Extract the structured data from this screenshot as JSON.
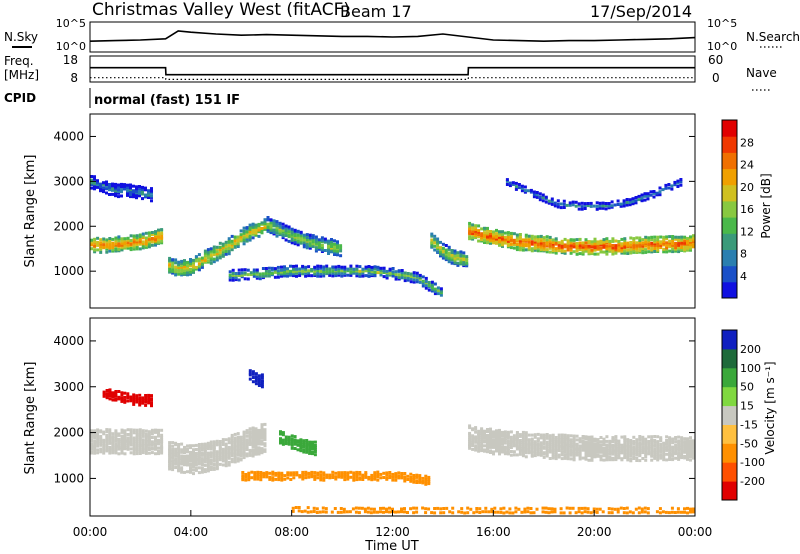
{
  "header": {
    "title": "Christmas Valley West (fitACF)",
    "beam": "Beam 17",
    "date": "17/Sep/2014"
  },
  "top_panels": {
    "nsky_label": "N.Sky",
    "nsearch_label": "N.Search",
    "noise_ticks": [
      "10^5",
      "10^0"
    ],
    "freq_label": "Freq.",
    "freq_unit": "[MHz]",
    "freq_ticks": [
      "18",
      "8"
    ],
    "nave_label": "Nave",
    "nave_ticks": [
      "60",
      "0"
    ],
    "cpid_label": "CPID",
    "cpid_value": "normal (fast) 151 IF"
  },
  "chart_data": [
    {
      "type": "line",
      "name": "noise",
      "x": [
        0,
        1,
        2,
        3,
        3.5,
        4,
        5,
        6,
        7,
        8,
        9,
        10,
        11,
        12,
        13,
        14,
        15,
        16,
        17,
        18,
        19,
        20,
        21,
        22,
        23,
        24
      ],
      "series": [
        {
          "name": "N.Sky",
          "values": [
            1.8,
            1.9,
            2.0,
            2.2,
            3.5,
            3.3,
            3.0,
            2.8,
            2.9,
            2.8,
            2.7,
            2.6,
            2.6,
            2.5,
            2.6,
            3.0,
            2.5,
            2.0,
            1.9,
            1.8,
            1.9,
            1.9,
            2.0,
            2.1,
            2.2,
            2.4
          ]
        }
      ],
      "yscale": "log",
      "ylim": [
        0,
        5
      ],
      "xlim": [
        0,
        24
      ]
    },
    {
      "type": "line",
      "name": "frequency",
      "x": [
        0,
        3,
        3.01,
        15,
        15.01,
        24
      ],
      "series": [
        {
          "name": "Freq.",
          "values": [
            13.5,
            13.5,
            10.8,
            10.8,
            13.5,
            13.5
          ]
        },
        {
          "name": "Nave",
          "values": [
            10,
            10,
            6,
            6,
            10,
            10
          ]
        }
      ],
      "ylim": [
        8,
        18
      ],
      "y2lim": [
        0,
        60
      ],
      "xlim": [
        0,
        24
      ]
    },
    {
      "type": "heatmap",
      "name": "power",
      "xlim": [
        0,
        24
      ],
      "ylim": [
        180,
        4500
      ],
      "ylabel": "Slant Range [km]",
      "yticks": [
        "1000",
        "2000",
        "3000",
        "4000"
      ],
      "colorbar_label": "Power [dB]",
      "colorbar_ticks": [
        "4",
        "8",
        "12",
        "16",
        "20",
        "24",
        "28"
      ],
      "colorbar_range": [
        0,
        30
      ],
      "colorbar_colors": [
        "#1010e0",
        "#1a50c8",
        "#2a7fb0",
        "#3a9a7a",
        "#4ab84a",
        "#88c840",
        "#d0c020",
        "#f0a000",
        "#f07000",
        "#f03800",
        "#e00000"
      ],
      "bands": [
        {
          "name": "main-sea-scatter-early",
          "x": [
            0,
            0.5,
            1,
            1.5,
            2,
            2.5,
            2.9
          ],
          "range": [
            1600,
            1580,
            1600,
            1620,
            1650,
            1720,
            1800
          ],
          "width": 300,
          "db": 24
        },
        {
          "name": "main-sea-scatter-dip",
          "x": [
            3.1,
            3.5,
            4,
            4.5,
            5,
            5.5,
            6,
            6.5,
            7
          ],
          "range": [
            1150,
            1050,
            1100,
            1250,
            1400,
            1550,
            1750,
            1900,
            2000
          ],
          "width": 320,
          "db": 20
        },
        {
          "name": "morning-band",
          "x": [
            7,
            8,
            9,
            10
          ],
          "range": [
            2050,
            1800,
            1600,
            1500
          ],
          "width": 300,
          "db": 16
        },
        {
          "name": "lower-band",
          "x": [
            5.5,
            7,
            8,
            9,
            10,
            11,
            12,
            13,
            14
          ],
          "range": [
            900,
            950,
            1000,
            1000,
            1000,
            1000,
            950,
            850,
            500
          ],
          "width": 200,
          "db": 14
        },
        {
          "name": "afternoon-dip",
          "x": [
            13.5,
            14,
            14.5,
            15
          ],
          "range": [
            1700,
            1450,
            1300,
            1250
          ],
          "width": 300,
          "db": 18
        },
        {
          "name": "main-sea-scatter-late",
          "x": [
            15,
            16,
            17,
            18,
            19,
            20,
            21,
            22,
            23,
            24
          ],
          "range": [
            1900,
            1750,
            1650,
            1600,
            1550,
            1550,
            1550,
            1580,
            1600,
            1620
          ],
          "width": 320,
          "db": 26
        },
        {
          "name": "upper-echoes-early",
          "x": [
            0,
            0.5,
            1,
            1.5,
            2,
            2.5
          ],
          "range": [
            3000,
            2900,
            2800,
            2800,
            2750,
            2700
          ],
          "width": 250,
          "db": 8
        },
        {
          "name": "upper-echoes-late",
          "x": [
            16.5,
            17.5,
            18.5,
            19.5,
            20.5,
            21.5,
            22.5,
            23.5
          ],
          "range": [
            3000,
            2750,
            2500,
            2450,
            2450,
            2550,
            2750,
            3000
          ],
          "width": 120,
          "db": 6
        }
      ]
    },
    {
      "type": "heatmap",
      "name": "velocity",
      "xlim": [
        0,
        24
      ],
      "ylim": [
        180,
        4500
      ],
      "xlabel": "Time UT",
      "ylabel": "Slant Range [km]",
      "yticks": [
        "1000",
        "2000",
        "3000",
        "4000"
      ],
      "xticks": [
        "00:00",
        "04:00",
        "08:00",
        "12:00",
        "16:00",
        "20:00",
        "00:00"
      ],
      "colorbar_label": "Velocity [m s⁻¹]",
      "colorbar_ticks": [
        "200",
        "100",
        "50",
        "15",
        "-15",
        "-50",
        "-100",
        "-200"
      ],
      "colorbar_colors": [
        "#1020c0",
        "#1e6a3a",
        "#3aa83a",
        "#80d840",
        "#c8c8c0",
        "#ffc040",
        "#ff9000",
        "#ff5000",
        "#e00000"
      ],
      "bands": [
        {
          "name": "ground-scatter-early",
          "x": [
            0,
            1,
            2,
            2.9
          ],
          "range": [
            1800,
            1800,
            1800,
            1800
          ],
          "width": 500,
          "v": 0
        },
        {
          "name": "ground-scatter-dip",
          "x": [
            3.1,
            4,
            5,
            6,
            7
          ],
          "range": [
            1500,
            1400,
            1500,
            1700,
            1900
          ],
          "width": 600,
          "v": 0
        },
        {
          "name": "morning-green",
          "x": [
            7.5,
            8,
            8.5,
            9
          ],
          "range": [
            1900,
            1800,
            1700,
            1650
          ],
          "width": 250,
          "v": 60
        },
        {
          "name": "lower-orange",
          "x": [
            6,
            8,
            10,
            12,
            13.5
          ],
          "range": [
            1050,
            1050,
            1050,
            1050,
            950
          ],
          "width": 150,
          "v": -60
        },
        {
          "name": "bottom-orange",
          "x": [
            8,
            10,
            12,
            14,
            16,
            18,
            20,
            22,
            24
          ],
          "range": [
            320,
            300,
            300,
            300,
            300,
            300,
            300,
            300,
            300
          ],
          "width": 80,
          "v": -60
        },
        {
          "name": "ground-scatter-late",
          "x": [
            15,
            16,
            18,
            20,
            22,
            24
          ],
          "range": [
            1900,
            1800,
            1700,
            1650,
            1650,
            1650
          ],
          "width": 500,
          "v": 0
        },
        {
          "name": "red-echoes",
          "x": [
            0.5,
            1,
            1.5,
            2,
            2.5
          ],
          "range": [
            2900,
            2800,
            2750,
            2700,
            2700
          ],
          "width": 200,
          "v": -200
        },
        {
          "name": "blue-red-patch",
          "x": [
            6.3,
            6.6,
            6.9
          ],
          "range": [
            3300,
            3200,
            3100
          ],
          "width": 250,
          "v": 200
        }
      ]
    }
  ],
  "colors": {
    "axis": "#000000",
    "panel_background": "#ffffff"
  }
}
